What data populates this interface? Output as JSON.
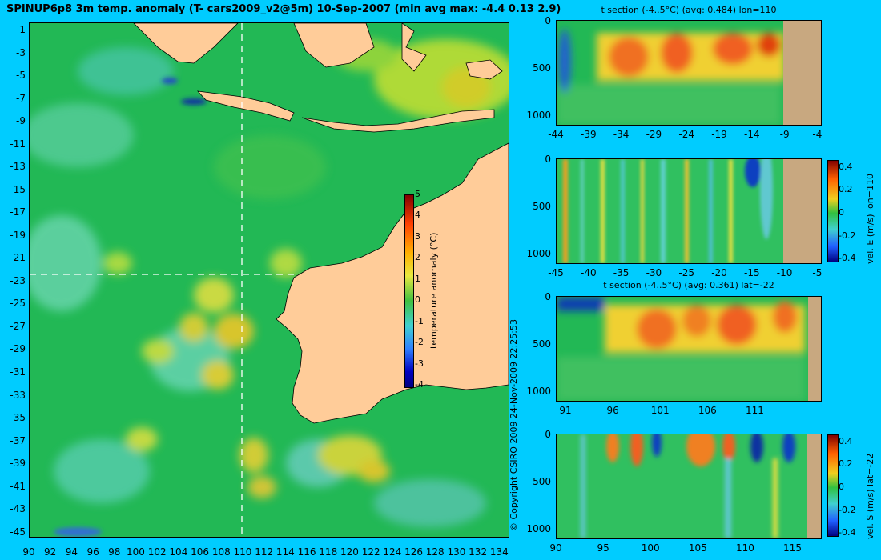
{
  "title": "SPINUP6p8 3m temp. anomaly (T- cars2009_v2@5m) 10-Sep-2007 (min avg max: -4.4 0.13 2.9)",
  "map": {
    "lat_ticks": [
      "-1",
      "-3",
      "-5",
      "-7",
      "-9",
      "-11",
      "-13",
      "-15",
      "-17",
      "-19",
      "-21",
      "-23",
      "-25",
      "-27",
      "-29",
      "-31",
      "-33",
      "-35",
      "-37",
      "-39",
      "-41",
      "-43",
      "-45"
    ],
    "lon_ticks": [
      "90",
      "92",
      "94",
      "96",
      "98",
      "100",
      "102",
      "104",
      "106",
      "108",
      "110",
      "112",
      "114",
      "116",
      "118",
      "120",
      "122",
      "124",
      "126",
      "128",
      "130",
      "132",
      "134"
    ],
    "colorbar": {
      "label": "temperature anomaly (°C)",
      "ticks": [
        "5",
        "4",
        "3",
        "2",
        "1",
        "0",
        "-1",
        "-2",
        "-3",
        "-4"
      ]
    },
    "copyright": "© Copyright CSIRO 2009   24-Nov-2009 22:25:53",
    "colors": {
      "land": "#ffcc99",
      "ocean_base": "#22b855",
      "marker_line": "#ffffff"
    }
  },
  "panels": [
    {
      "title": "t section (-4..5°C) (avg: 0.484) lon=110",
      "y_ticks": [
        "0",
        "500",
        "1000"
      ],
      "x_ticks": [
        "-44",
        "-39",
        "-34",
        "-29",
        "-24",
        "-19",
        "-14",
        "-9",
        "-4"
      ],
      "colorbar": null
    },
    {
      "title": "",
      "y_ticks": [
        "0",
        "500",
        "1000"
      ],
      "x_ticks": [
        "-45",
        "-40",
        "-35",
        "-30",
        "-25",
        "-20",
        "-15",
        "-10",
        "-5"
      ],
      "colorbar": {
        "label": "vel. E (m/s) lon=110",
        "ticks": [
          "0.4",
          "0.2",
          "0",
          "-0.2",
          "-0.4"
        ]
      }
    },
    {
      "title": "t section (-4..5°C) (avg: 0.361) lat=-22",
      "y_ticks": [
        "0",
        "500",
        "1000"
      ],
      "x_ticks": [
        "91",
        "96",
        "101",
        "106",
        "111"
      ],
      "colorbar": null
    },
    {
      "title": "",
      "y_ticks": [
        "0",
        "500",
        "1000"
      ],
      "x_ticks": [
        "90",
        "95",
        "100",
        "105",
        "110",
        "115"
      ],
      "colorbar": {
        "label": "vel. S (m/s) lat=-22",
        "ticks": [
          "0.4",
          "0.2",
          "0",
          "-0.2",
          "-0.4"
        ]
      }
    }
  ]
}
